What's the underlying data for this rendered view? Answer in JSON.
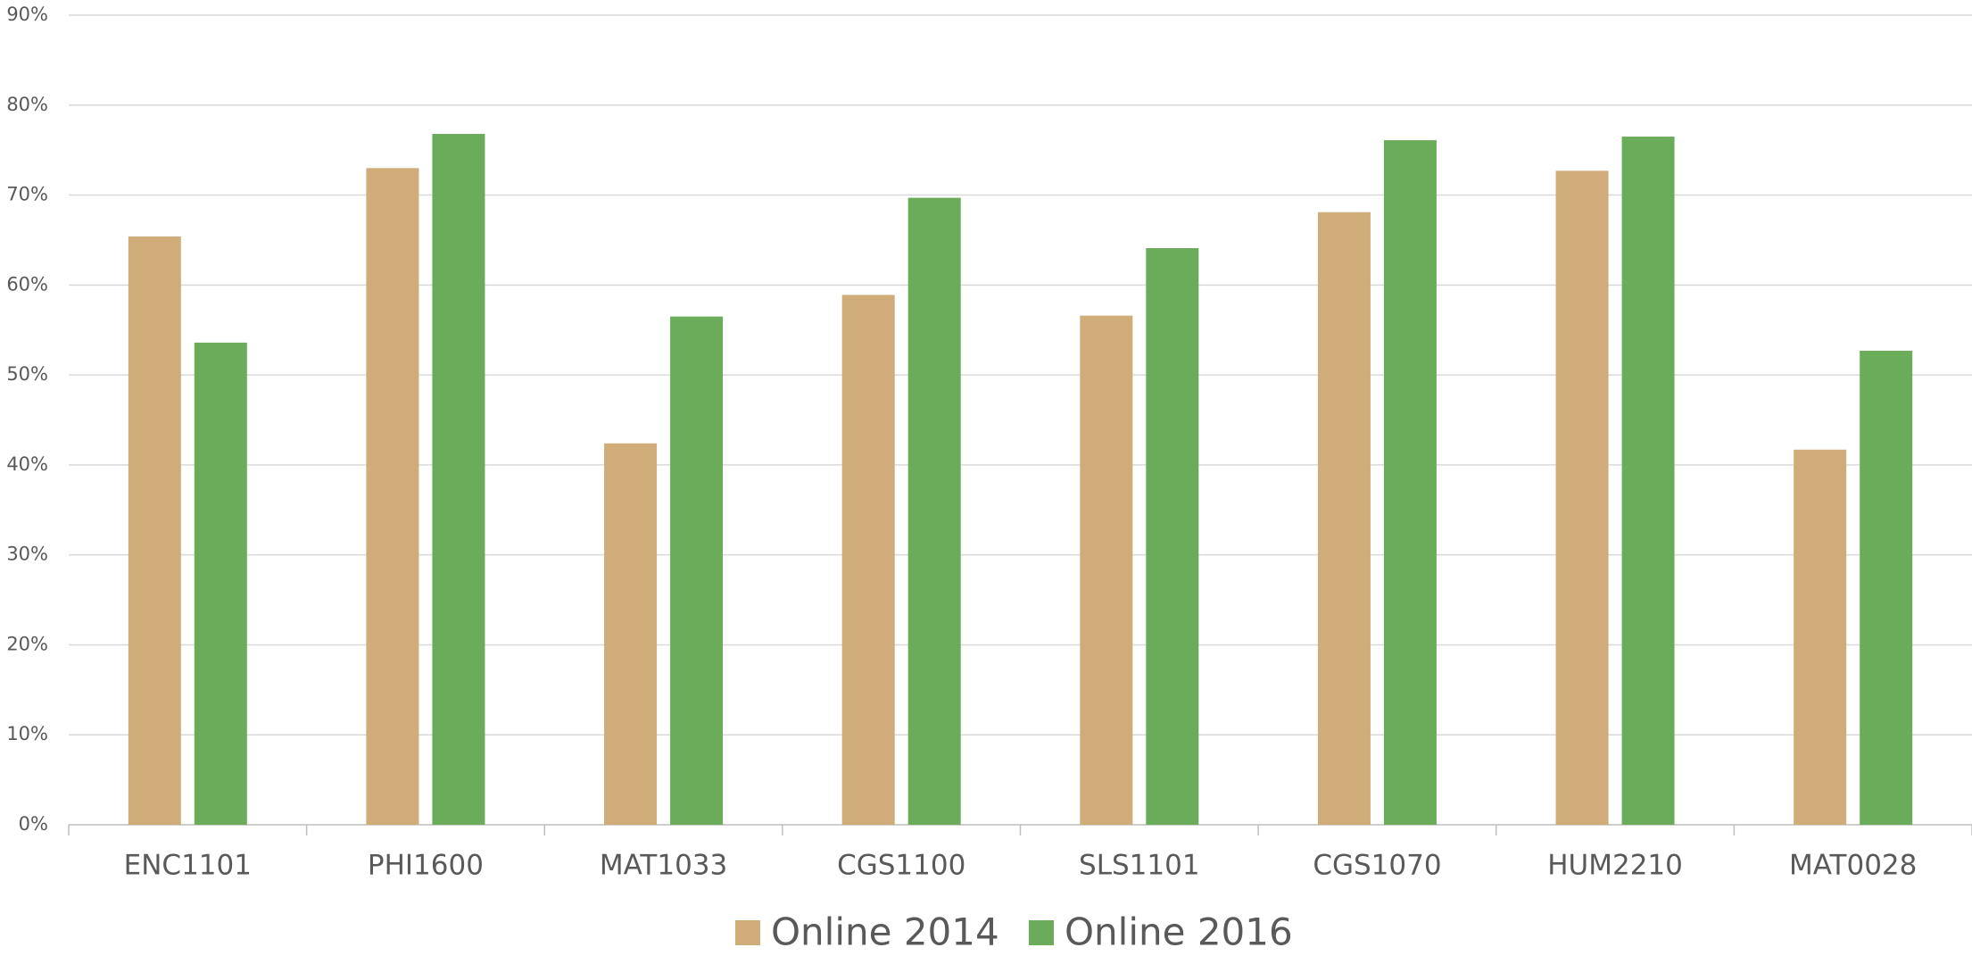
{
  "chart_data": {
    "type": "bar",
    "categories": [
      "ENC1101",
      "PHI1600",
      "MAT1033",
      "CGS1100",
      "SLS1101",
      "CGS1070",
      "HUM2210",
      "MAT0028"
    ],
    "series": [
      {
        "name": "Online 2014",
        "color": "#CFAC78",
        "values": [
          65.4,
          73.0,
          42.4,
          58.9,
          56.6,
          68.1,
          72.7,
          41.7
        ]
      },
      {
        "name": "Online 2016",
        "color": "#6AAC5A",
        "values": [
          53.6,
          76.8,
          56.5,
          69.7,
          64.1,
          76.1,
          76.5,
          52.7
        ]
      }
    ],
    "ylim": [
      0,
      90
    ],
    "yticks": [
      {
        "value": 0,
        "label": "0%"
      },
      {
        "value": 10,
        "label": "10%"
      },
      {
        "value": 20,
        "label": "20%"
      },
      {
        "value": 30,
        "label": "30%"
      },
      {
        "value": 40,
        "label": "40%"
      },
      {
        "value": 50,
        "label": "50%"
      },
      {
        "value": 60,
        "label": "60%"
      },
      {
        "value": 70,
        "label": "70%"
      },
      {
        "value": 80,
        "label": "80%"
      },
      {
        "value": 90,
        "label": "90%"
      }
    ],
    "grid": true,
    "legend": "bottom"
  }
}
